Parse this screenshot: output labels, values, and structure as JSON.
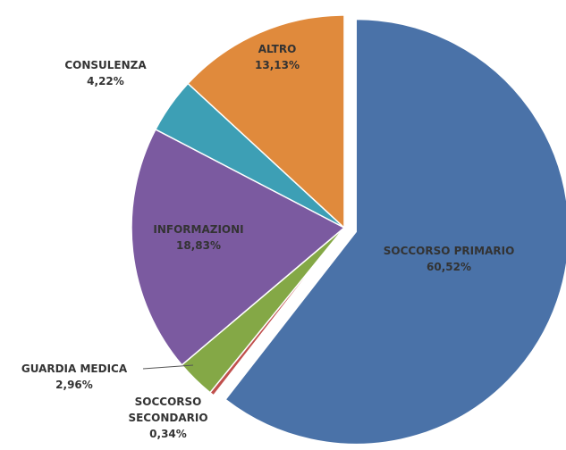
{
  "chart_data": {
    "type": "pie",
    "categories": [
      "SOCCORSO PRIMARIO",
      "SOCCORSO SECONDARIO",
      "GUARDIA MEDICA",
      "INFORMAZIONI",
      "CONSULENZA",
      "ALTRO"
    ],
    "values": [
      60.52,
      0.34,
      2.96,
      18.83,
      4.22,
      13.13
    ],
    "value_labels": [
      "60,52%",
      "0,34%",
      "2,96%",
      "18,83%",
      "4,22%",
      "13,13%"
    ],
    "colors": [
      "#4a72a8",
      "#c0504d",
      "#84a846",
      "#7b5aa0",
      "#3d9fb5",
      "#e08a3c"
    ]
  }
}
